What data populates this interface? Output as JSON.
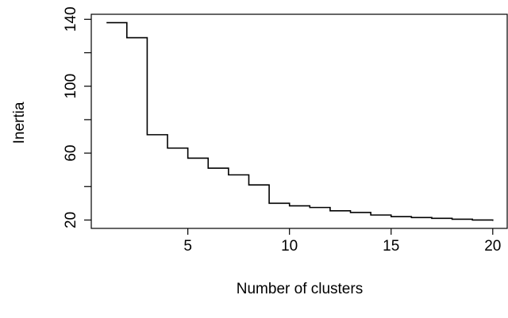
{
  "chart_data": {
    "type": "line",
    "step": true,
    "title": "",
    "xlabel": "Number of clusters",
    "ylabel": "Inertia",
    "xlim": [
      0.25,
      20.75
    ],
    "ylim": [
      15,
      143
    ],
    "xticks": [
      5,
      10,
      15,
      20
    ],
    "yticks": [
      20,
      60,
      100,
      140
    ],
    "grid": false,
    "series": [
      {
        "x": [
          1,
          2,
          3,
          4,
          5,
          6,
          7,
          8,
          9,
          10,
          11,
          12,
          13,
          14,
          15,
          16,
          17,
          18,
          19,
          20
        ],
        "values": [
          138,
          129,
          71,
          63,
          57,
          51,
          47,
          41,
          30,
          28.5,
          27.5,
          25.5,
          24.5,
          23,
          22,
          21.5,
          21,
          20.5,
          20,
          19.5
        ]
      }
    ]
  }
}
